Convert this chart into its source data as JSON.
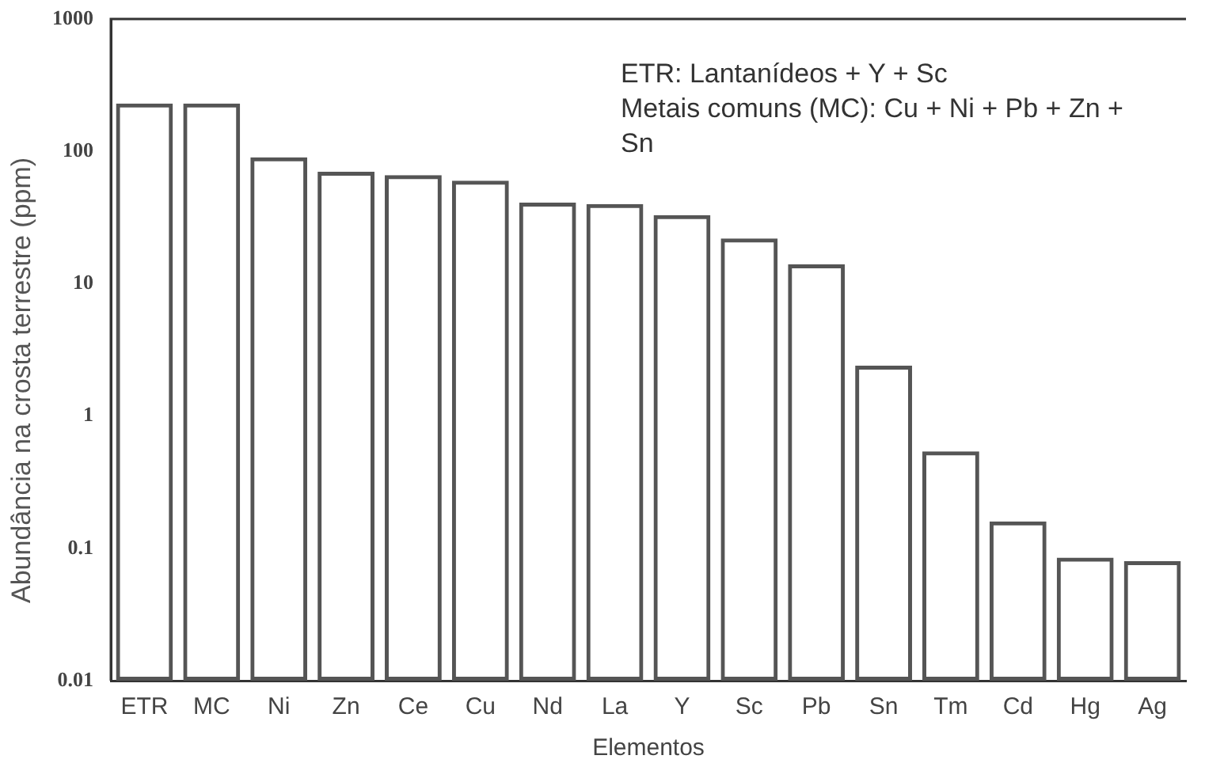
{
  "chart_data": {
    "type": "bar",
    "xlabel": "Elementos",
    "ylabel": "Abundância na crosta terrestre (ppm)",
    "categories": [
      "ETR",
      "MC",
      "Ni",
      "Zn",
      "Ce",
      "Cu",
      "Nd",
      "La",
      "Y",
      "Sc",
      "Pb",
      "Sn",
      "Tm",
      "Cd",
      "Hg",
      "Ag"
    ],
    "values": [
      230,
      230,
      90,
      70,
      66,
      60,
      41,
      40,
      33,
      22,
      14,
      2.4,
      0.54,
      0.16,
      0.085,
      0.08
    ],
    "color": "#555555",
    "log": true,
    "ylim": [
      0.01,
      1000
    ],
    "yticks": [
      0.01,
      0.1,
      1,
      10,
      100,
      1000
    ],
    "grid": false,
    "legend": false,
    "annotations": [
      "ETR: Lantanídeos + Y + Sc",
      "Metais comuns (MC): Cu + Ni + Pb + Zn + Sn"
    ]
  }
}
